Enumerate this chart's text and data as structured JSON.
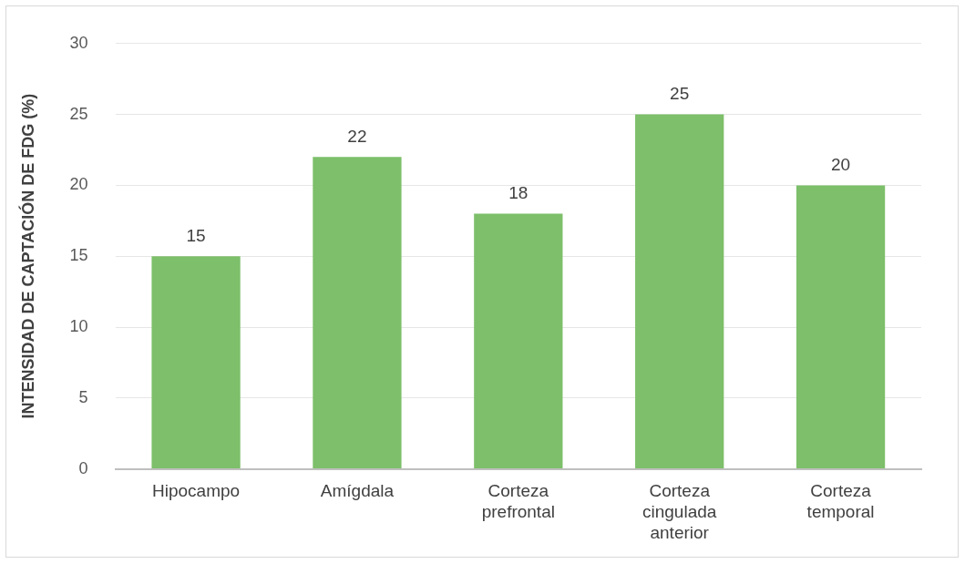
{
  "chart_data": {
    "type": "bar",
    "ylabel": "INTENSIDAD DE CAPTACIÓN DE FDG (%)",
    "categories": [
      "Hipocampo",
      "Amígdala",
      "Corteza prefrontal",
      "Corteza cingulada anterior",
      "Corteza temporal"
    ],
    "values": [
      15,
      22,
      18,
      25,
      20
    ],
    "color": "#7dbf6a",
    "ylim": [
      0,
      30
    ],
    "yticks": [
      0,
      5,
      10,
      15,
      20,
      25,
      30
    ],
    "grid": "y",
    "data_labels": true,
    "legend": false
  }
}
